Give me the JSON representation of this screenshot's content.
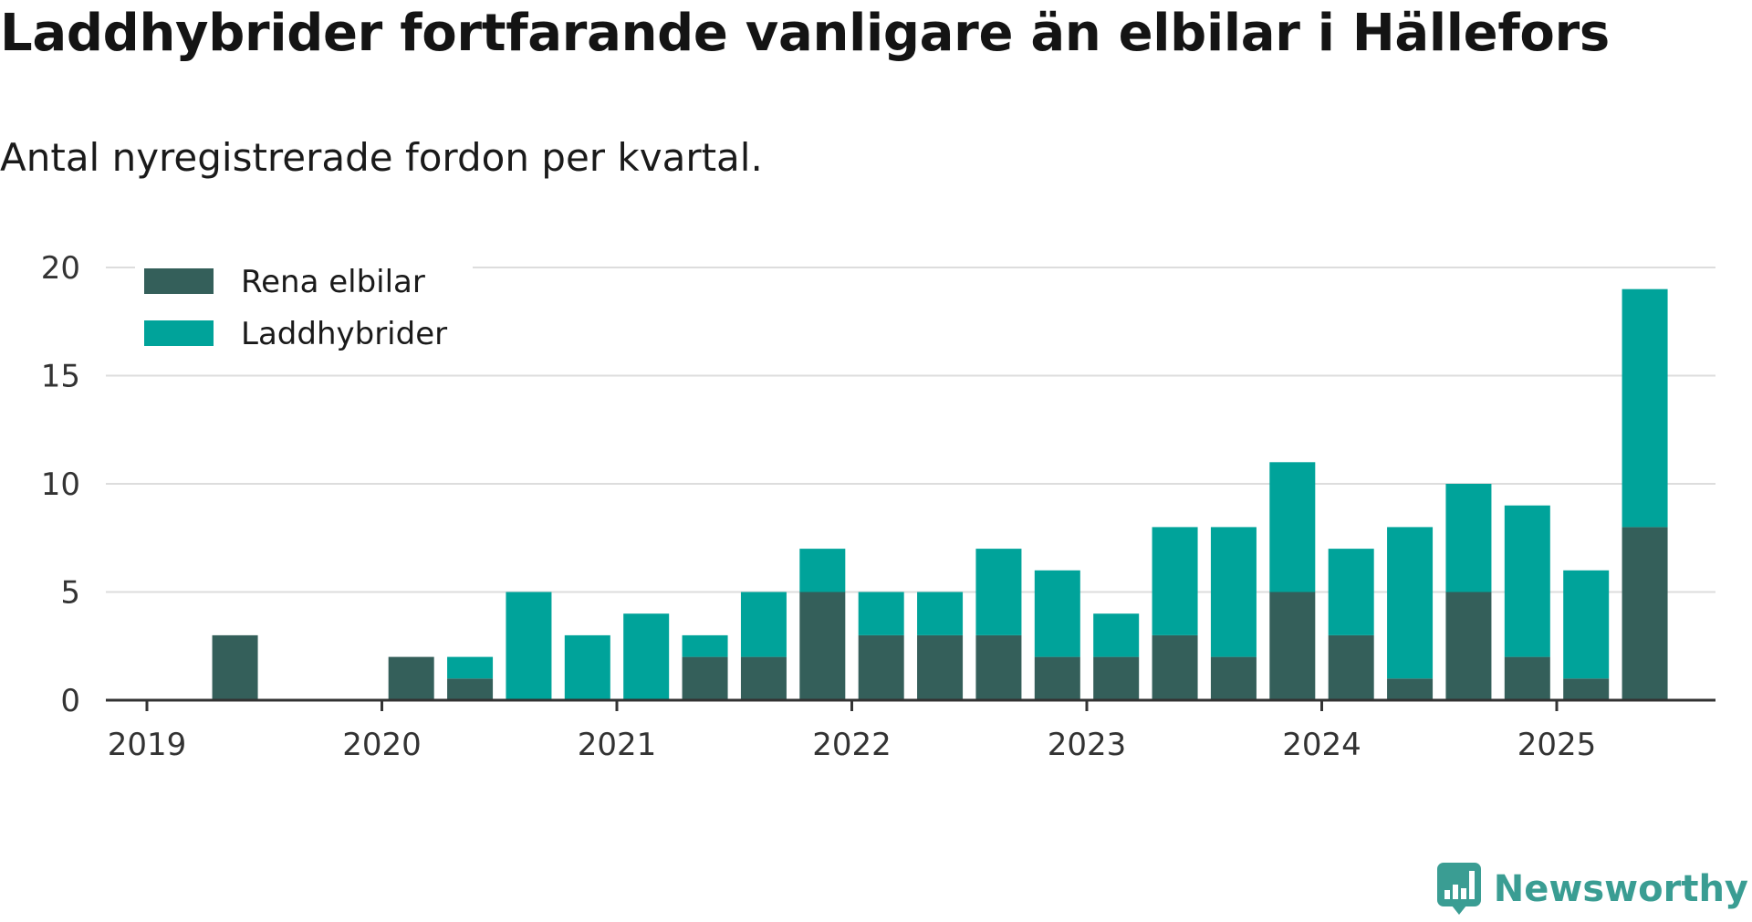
{
  "title": "Laddhybrider fortfarande vanligare än elbilar i Hällefors",
  "subtitle": "Antal nyregistrerade fordon per kvartal.",
  "brand": "Newsworthy",
  "colors": {
    "elbil": "#345f5a",
    "laddhybrid": "#00a39a",
    "grid": "#dddddd",
    "axis": "#333333",
    "brand": "#3a9d93"
  },
  "chart_data": {
    "type": "bar",
    "stacked": true,
    "x_unit": "quarter",
    "categories": [
      "2019 Q1",
      "2019 Q2",
      "2019 Q3",
      "2019 Q4",
      "2020 Q1",
      "2020 Q2",
      "2020 Q3",
      "2020 Q4",
      "2021 Q1",
      "2021 Q2",
      "2021 Q3",
      "2021 Q4",
      "2022 Q1",
      "2022 Q2",
      "2022 Q3",
      "2022 Q4",
      "2023 Q1",
      "2023 Q2",
      "2023 Q3",
      "2023 Q4",
      "2024 Q1",
      "2024 Q2",
      "2024 Q3",
      "2024 Q4",
      "2025 Q1",
      "2025 Q2"
    ],
    "series": [
      {
        "name": "Rena elbilar",
        "values": [
          0,
          3,
          0,
          0,
          2,
          1,
          0,
          0,
          0,
          2,
          2,
          5,
          3,
          3,
          3,
          2,
          2,
          3,
          2,
          5,
          3,
          1,
          5,
          2,
          1,
          8
        ]
      },
      {
        "name": "Laddhybrider",
        "values": [
          0,
          0,
          0,
          0,
          0,
          1,
          5,
          3,
          4,
          1,
          3,
          2,
          2,
          2,
          4,
          4,
          2,
          5,
          6,
          6,
          4,
          7,
          5,
          7,
          5,
          11
        ]
      }
    ],
    "x_tick_labels": [
      "2019",
      "2020",
      "2021",
      "2022",
      "2023",
      "2024",
      "2025"
    ],
    "y_ticks": [
      0,
      5,
      10,
      15,
      20
    ],
    "ylim": [
      0,
      20
    ],
    "grid": "horizontal",
    "legend_position": "top-left"
  }
}
